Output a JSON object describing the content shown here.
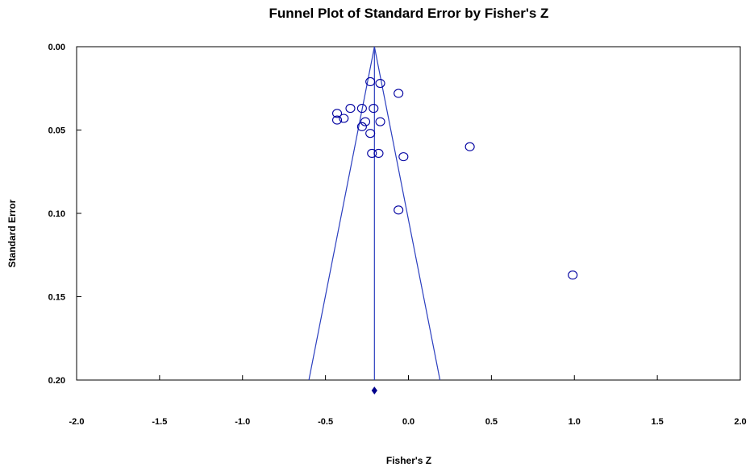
{
  "chart_data": {
    "type": "scatter",
    "title": "Funnel Plot of Standard Error by Fisher's Z",
    "xlabel": "Fisher's Z",
    "ylabel": "Standard Error",
    "xlim": [
      -2.0,
      2.0
    ],
    "ylim": [
      0.0,
      0.2
    ],
    "y_inverted": true,
    "grid": false,
    "x_ticks": [
      "-2.0",
      "-1.5",
      "-1.0",
      "-0.5",
      "0.0",
      "0.5",
      "1.0",
      "1.5",
      "2.0"
    ],
    "y_ticks": [
      "0.00",
      "0.05",
      "0.10",
      "0.15",
      "0.20"
    ],
    "summary_effect": -0.205,
    "funnel": {
      "apex": [
        -0.205,
        0.0
      ],
      "left_base": [
        -0.6,
        0.2
      ],
      "right_base": [
        0.19,
        0.2
      ]
    },
    "summary_marker": {
      "x": -0.205,
      "shape": "diamond"
    },
    "points": [
      {
        "x": -0.23,
        "y": 0.021
      },
      {
        "x": -0.17,
        "y": 0.022
      },
      {
        "x": -0.06,
        "y": 0.028
      },
      {
        "x": -0.35,
        "y": 0.037
      },
      {
        "x": -0.28,
        "y": 0.037
      },
      {
        "x": -0.21,
        "y": 0.037
      },
      {
        "x": -0.43,
        "y": 0.04
      },
      {
        "x": -0.43,
        "y": 0.044
      },
      {
        "x": -0.39,
        "y": 0.043
      },
      {
        "x": -0.26,
        "y": 0.045
      },
      {
        "x": -0.17,
        "y": 0.045
      },
      {
        "x": -0.28,
        "y": 0.048
      },
      {
        "x": -0.23,
        "y": 0.052
      },
      {
        "x": -0.22,
        "y": 0.064
      },
      {
        "x": -0.18,
        "y": 0.064
      },
      {
        "x": -0.03,
        "y": 0.066
      },
      {
        "x": 0.37,
        "y": 0.06
      },
      {
        "x": -0.06,
        "y": 0.098
      },
      {
        "x": 0.99,
        "y": 0.137
      }
    ],
    "colors": {
      "marker": "#0000a0",
      "funnel_line": "#2b3fbf",
      "axis": "#000000",
      "summary": "#00008b"
    }
  }
}
